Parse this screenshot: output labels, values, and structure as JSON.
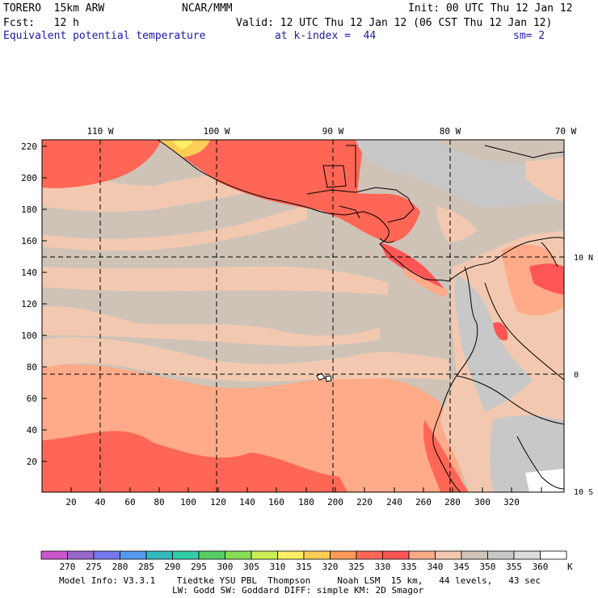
{
  "header": {
    "model": "TORERO  15km ARW",
    "center": "NCAR/MMM",
    "init": "Init: 00 UTC Thu 12 Jan 12",
    "fcst": "Fcst:   12 h",
    "valid": "Valid: 12 UTC Thu 12 Jan 12 (06 CST Thu 12 Jan 12)",
    "field": "Equivalent potential temperature",
    "level": "at k-index =  44",
    "smooth": "sm= 2"
  },
  "axes": {
    "top_lon": [
      "110 W",
      "100 W",
      "90 W",
      "80 W",
      "70 W"
    ],
    "right_lat": [
      "10 N",
      "0",
      "10 S"
    ],
    "left_y": [
      "20",
      "40",
      "60",
      "80",
      "100",
      "120",
      "140",
      "160",
      "180",
      "200",
      "220"
    ],
    "bottom_x": [
      "20",
      "40",
      "60",
      "80",
      "100",
      "120",
      "140",
      "160",
      "180",
      "200",
      "220",
      "240",
      "260",
      "280",
      "300",
      "320"
    ]
  },
  "colorbar": {
    "labels": [
      "270",
      "275",
      "280",
      "285",
      "290",
      "295",
      "300",
      "305",
      "310",
      "315",
      "320",
      "325",
      "330",
      "335",
      "340",
      "345",
      "350",
      "355",
      "360"
    ],
    "unit": "K",
    "colors": [
      "#cc55cc",
      "#9966cc",
      "#7777ee",
      "#5599ee",
      "#33bbbb",
      "#33ccaa",
      "#55cc66",
      "#88dd55",
      "#ccee55",
      "#ffee66",
      "#ffcc55",
      "#ff9955",
      "#ff6655",
      "#ff5555",
      "#ffaa88",
      "#f2c9b0",
      "#cfc3b8",
      "#c8c8c8",
      "#dcdcdc",
      "#ffffff"
    ]
  },
  "footer": {
    "line1": "Model Info: V3.3.1    Tiedtke YSU PBL  Thompson     Noah LSM  15 km,   44 levels,   43 sec",
    "line2": "LW: Godd SW: Goddard DIFF: simple KM: 2D Smagor"
  }
}
